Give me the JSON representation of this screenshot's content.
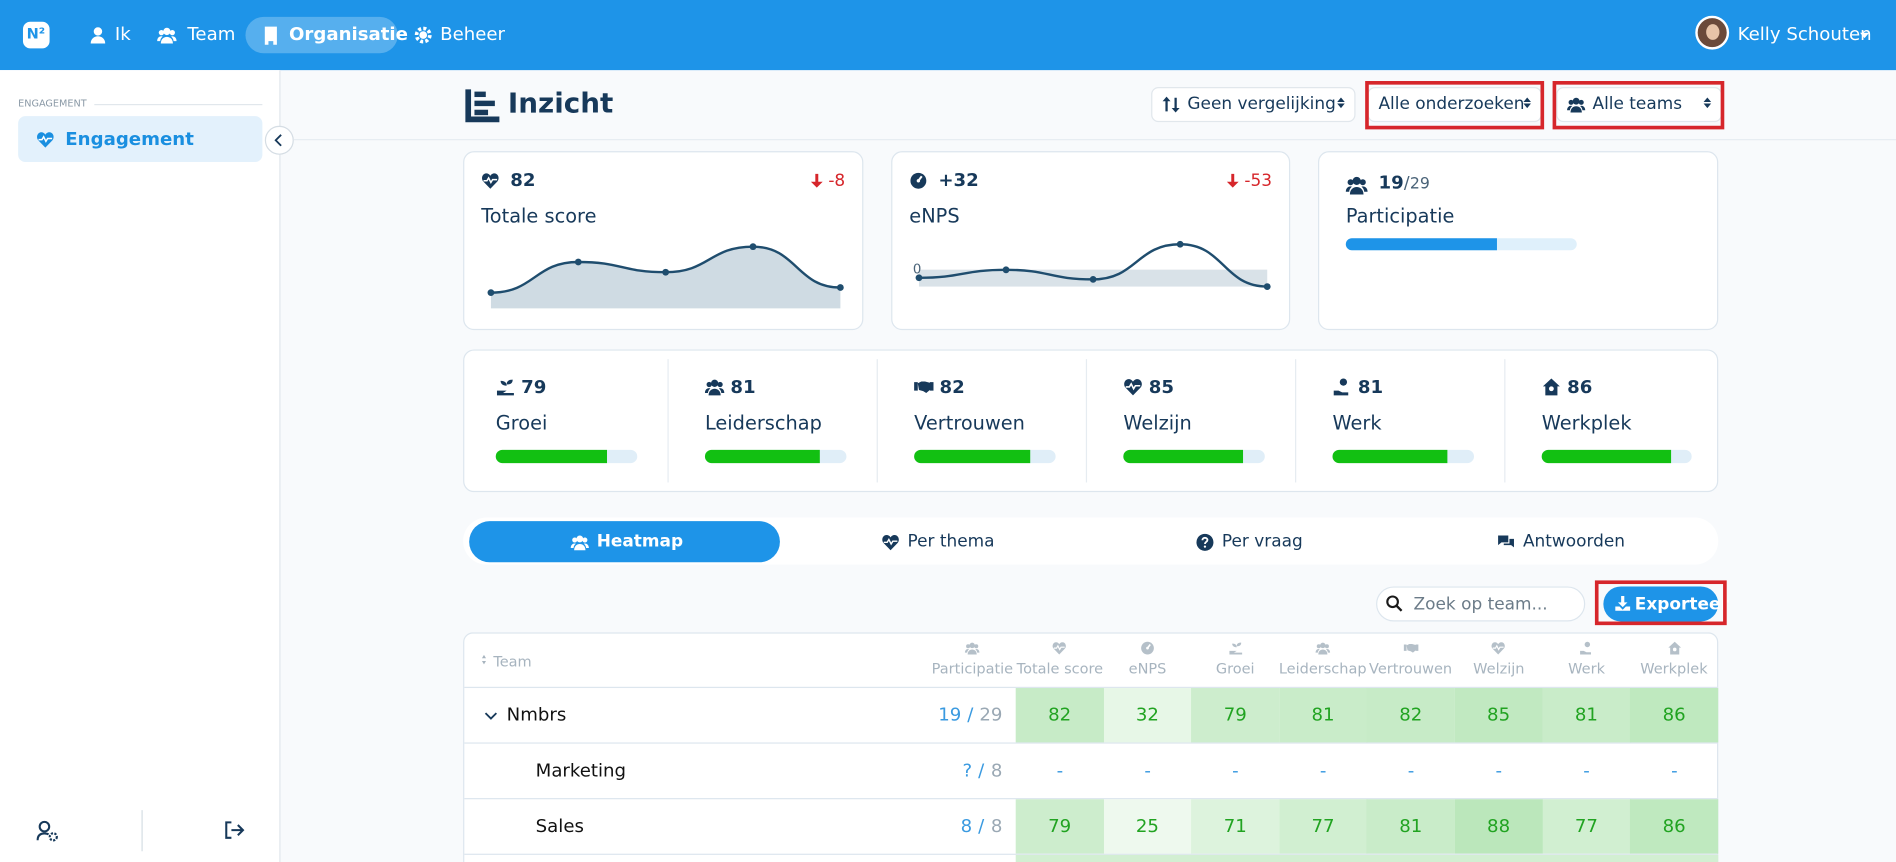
{
  "nav": {
    "items": [
      "Ik",
      "Team",
      "Organisatie",
      "Beheer"
    ],
    "user": "Kelly Schouten"
  },
  "sidebar": {
    "section": "ENGAGEMENT",
    "item": "Engagement"
  },
  "header": {
    "title": "Inzicht",
    "filters": [
      "Geen vergelijking",
      "Alle onderzoeken",
      "Alle teams"
    ]
  },
  "kpis": [
    {
      "value": 82,
      "label": "Totale score",
      "change": "-8",
      "trend": [
        81,
        87,
        85,
        90,
        82
      ]
    },
    {
      "value": "+32",
      "label": "eNPS",
      "change": "-53",
      "baseline": 0,
      "trend": [
        43,
        53,
        41,
        85,
        32
      ]
    },
    {
      "count": 19,
      "separator": "/",
      "total": 29,
      "label": "Participatie"
    }
  ],
  "themes": [
    {
      "name": "Groei",
      "value": 79
    },
    {
      "name": "Leiderschap",
      "value": 81
    },
    {
      "name": "Vertrouwen",
      "value": 82
    },
    {
      "name": "Welzijn",
      "value": 85
    },
    {
      "name": "Werk",
      "value": 81
    },
    {
      "name": "Werkplek",
      "value": 86
    }
  ],
  "tabs": [
    "Heatmap",
    "Per thema",
    "Per vraag",
    "Antwoorden"
  ],
  "search_placeholder": "Zoek op team...",
  "export": "Exporteer",
  "table": {
    "team_header": "Team",
    "columns": [
      "Participatie",
      "Totale score",
      "eNPS",
      "Groei",
      "Leiderschap",
      "Vertrouwen",
      "Welzijn",
      "Werk",
      "Werkplek"
    ],
    "separator": "/",
    "rows": [
      {
        "team": "Nmbrs",
        "responded": 19,
        "invited": 29,
        "scores": [
          82,
          32,
          79,
          81,
          82,
          85,
          81,
          86
        ]
      },
      {
        "team": "Marketing",
        "responded": "?",
        "invited": 8,
        "scores": [
          "-",
          "-",
          "-",
          "-",
          "-",
          "-",
          "-",
          "-"
        ]
      },
      {
        "team": "Sales",
        "responded": 8,
        "invited": 8,
        "scores": [
          79,
          25,
          71,
          77,
          81,
          88,
          77,
          86
        ]
      }
    ]
  }
}
